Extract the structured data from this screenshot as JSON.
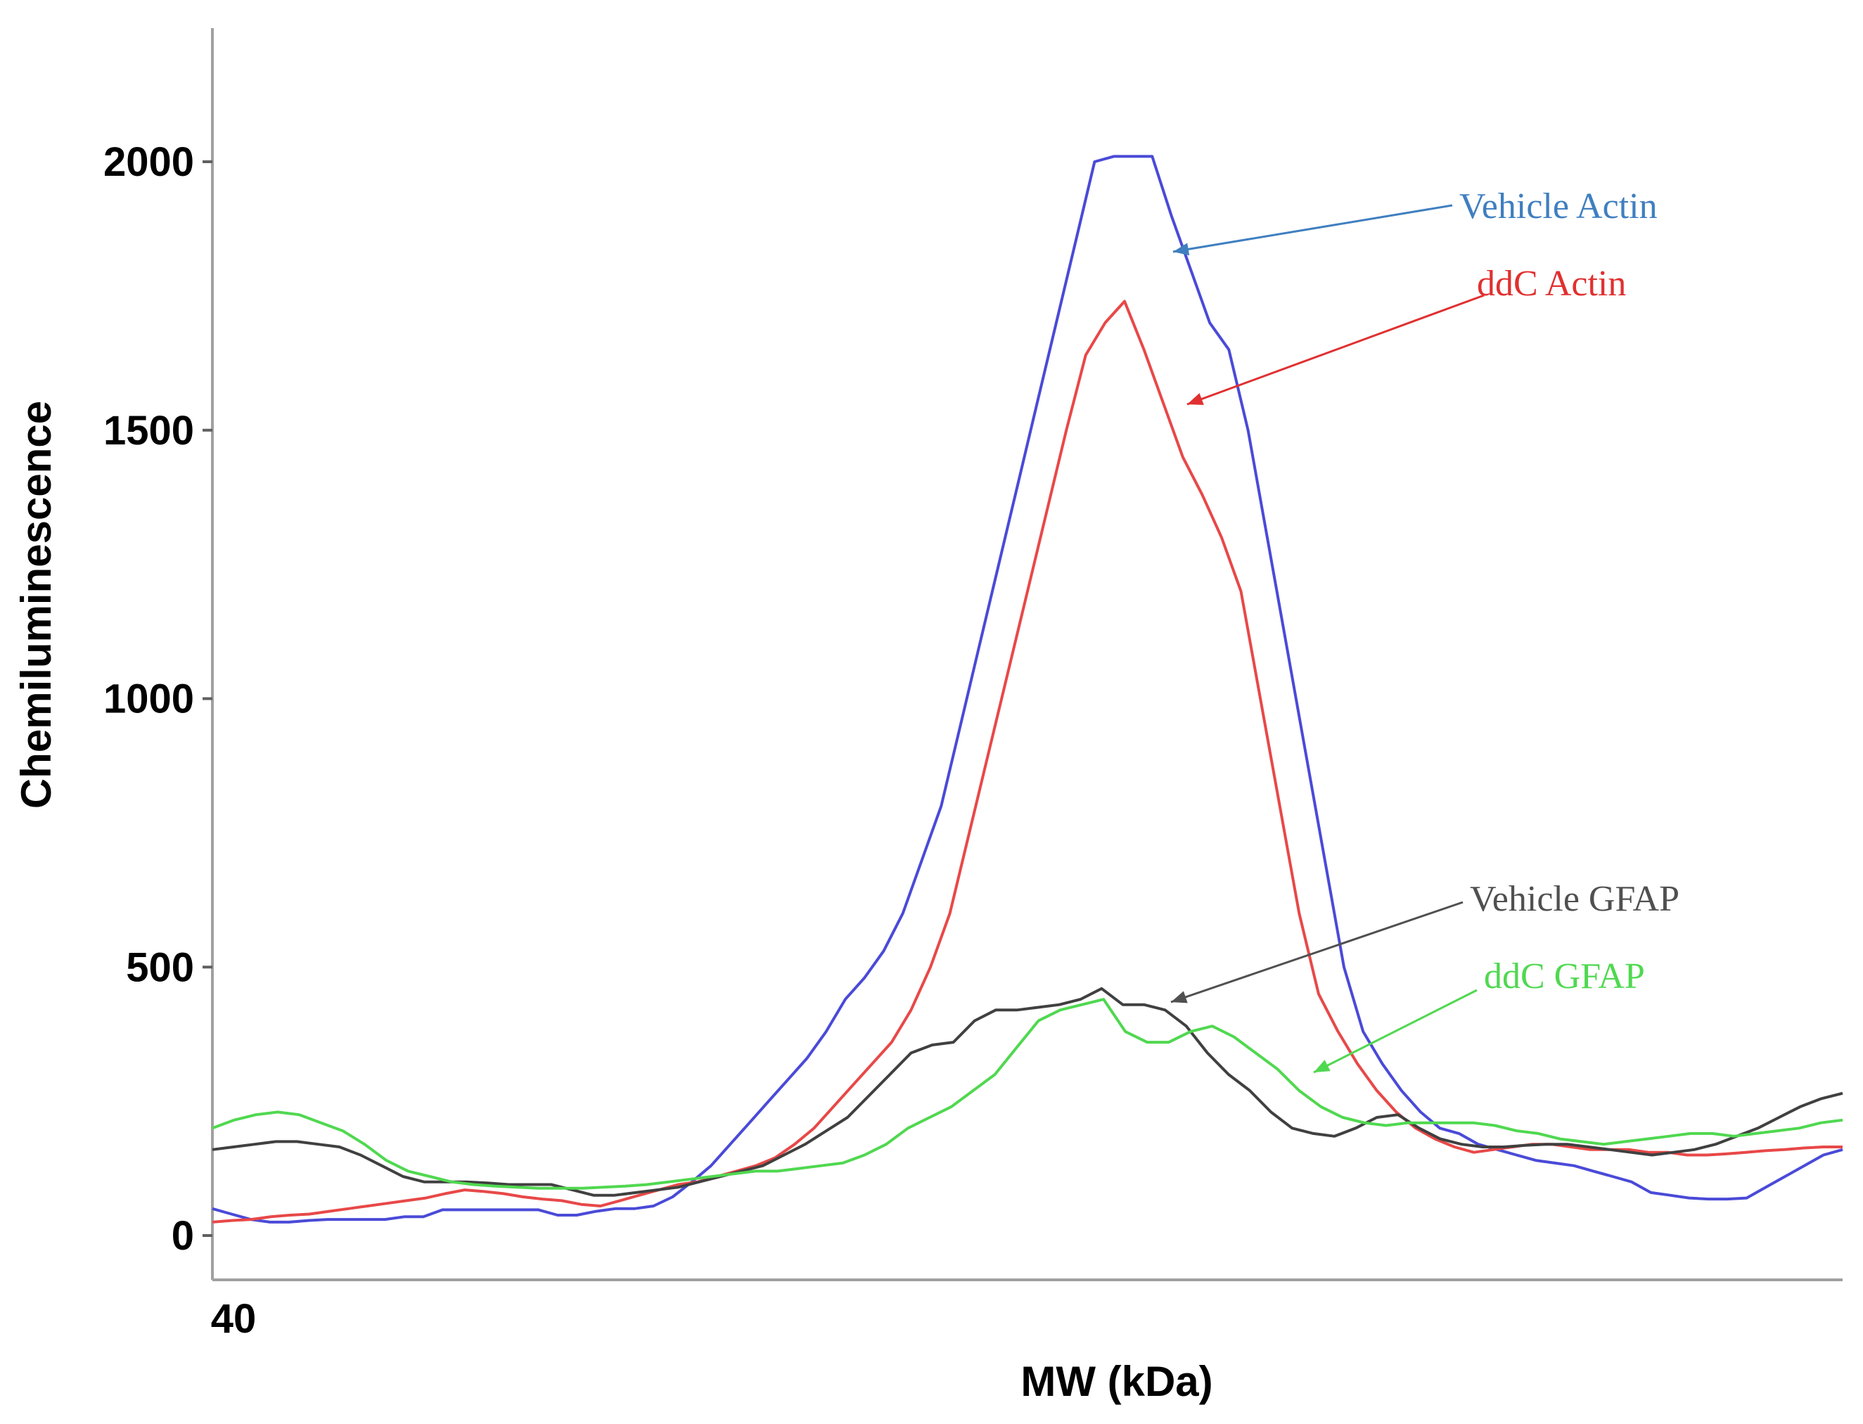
{
  "chart_data": {
    "type": "line",
    "title": "",
    "xlabel": "MW (kDa)",
    "ylabel": "Chemiluminescence",
    "x_tick_labels": [
      "40"
    ],
    "y_ticks": [
      0,
      500,
      1000,
      1500,
      2000
    ],
    "ylim": [
      -80,
      2250
    ],
    "x_points": 100,
    "grid": false,
    "series": [
      {
        "name": "Vehicle Actin",
        "color": "#4a4ad8",
        "label_color": "#3f7fc0",
        "annotation": "Vehicle Actin",
        "values": [
          50,
          40,
          30,
          25,
          25,
          28,
          30,
          30,
          30,
          30,
          35,
          35,
          48,
          48,
          48,
          48,
          48,
          48,
          38,
          38,
          45,
          50,
          50,
          55,
          72,
          100,
          130,
          170,
          210,
          250,
          290,
          330,
          380,
          440,
          480,
          530,
          600,
          700,
          800,
          950,
          1100,
          1250,
          1400,
          1550,
          1700,
          1850,
          2000,
          2010,
          2010,
          2010,
          1900,
          1800,
          1700,
          1650,
          1500,
          1300,
          1100,
          900,
          700,
          500,
          380,
          320,
          270,
          230,
          200,
          190,
          170,
          160,
          150,
          140,
          135,
          130,
          120,
          110,
          100,
          80,
          75,
          70,
          68,
          68,
          70,
          90,
          110,
          130,
          150,
          160
        ]
      },
      {
        "name": "ddC Actin",
        "color": "#e84848",
        "label_color": "#e03030",
        "annotation": "ddC Actin",
        "values": [
          25,
          28,
          30,
          35,
          38,
          40,
          45,
          50,
          55,
          60,
          65,
          70,
          78,
          85,
          82,
          78,
          72,
          68,
          65,
          58,
          55,
          65,
          75,
          85,
          95,
          100,
          110,
          120,
          130,
          145,
          170,
          200,
          240,
          280,
          320,
          360,
          420,
          500,
          600,
          750,
          900,
          1050,
          1200,
          1350,
          1500,
          1640,
          1700,
          1740,
          1650,
          1550,
          1450,
          1380,
          1300,
          1200,
          1000,
          800,
          600,
          450,
          380,
          320,
          270,
          230,
          200,
          180,
          165,
          155,
          160,
          165,
          170,
          170,
          165,
          160,
          160,
          160,
          155,
          155,
          150,
          150,
          152,
          155,
          158,
          160,
          163,
          165,
          165
        ]
      },
      {
        "name": "Vehicle GFAP",
        "color": "#404040",
        "label_color": "#505050",
        "annotation": "Vehicle GFAP",
        "values": [
          160,
          165,
          170,
          175,
          175,
          170,
          165,
          150,
          130,
          110,
          100,
          100,
          100,
          98,
          95,
          95,
          95,
          85,
          75,
          75,
          80,
          85,
          90,
          100,
          110,
          120,
          130,
          150,
          170,
          195,
          220,
          260,
          300,
          340,
          355,
          360,
          400,
          420,
          420,
          425,
          430,
          440,
          460,
          430,
          430,
          420,
          390,
          340,
          300,
          270,
          230,
          200,
          190,
          185,
          200,
          220,
          225,
          200,
          180,
          170,
          165,
          165,
          168,
          170,
          170,
          165,
          160,
          155,
          150,
          155,
          160,
          170,
          185,
          200,
          220,
          240,
          255,
          265
        ]
      },
      {
        "name": "ddC GFAP",
        "color": "#50d850",
        "label_color": "#50d850",
        "annotation": "ddC GFAP",
        "values": [
          200,
          215,
          225,
          230,
          225,
          210,
          195,
          170,
          140,
          120,
          110,
          100,
          95,
          92,
          90,
          88,
          88,
          88,
          90,
          92,
          95,
          100,
          105,
          110,
          115,
          120,
          120,
          125,
          130,
          135,
          150,
          170,
          200,
          220,
          240,
          270,
          300,
          350,
          400,
          420,
          430,
          440,
          380,
          360,
          360,
          380,
          390,
          370,
          340,
          310,
          270,
          240,
          220,
          210,
          205,
          210,
          210,
          210,
          210,
          205,
          195,
          190,
          180,
          175,
          170,
          175,
          180,
          185,
          190,
          190,
          185,
          190,
          195,
          200,
          210,
          215
        ]
      }
    ]
  }
}
